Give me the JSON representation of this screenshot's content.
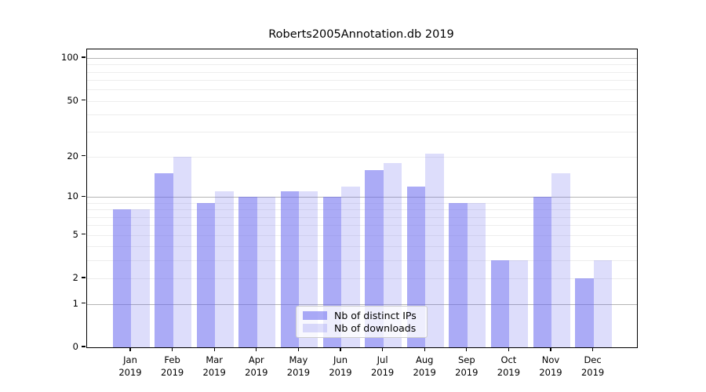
{
  "chart_data": {
    "type": "bar",
    "title": "Roberts2005Annotation.db 2019",
    "year_label": "2019",
    "categories": [
      "Jan",
      "Feb",
      "Mar",
      "Apr",
      "May",
      "Jun",
      "Jul",
      "Aug",
      "Sep",
      "Oct",
      "Nov",
      "Dec"
    ],
    "series": [
      {
        "name": "Nb of distinct IPs",
        "color": "rgba(102,102,238,0.55)",
        "values": [
          8,
          15,
          9,
          10,
          11,
          10,
          16,
          12,
          9,
          3,
          10,
          2
        ]
      },
      {
        "name": "Nb of downloads",
        "color": "rgba(102,102,238,0.22)",
        "values": [
          8,
          20,
          11,
          10,
          11,
          12,
          18,
          21,
          9,
          3,
          15,
          3
        ]
      }
    ],
    "y_axis": {
      "scale": "symlog-ln(1+v)",
      "min": 0,
      "max": 115,
      "ticks": [
        100,
        50,
        20,
        10,
        5,
        2,
        1,
        0
      ],
      "major_gridlines": [
        1,
        10,
        100
      ],
      "minor_gridlines": [
        2,
        3,
        4,
        5,
        6,
        7,
        8,
        9,
        20,
        30,
        40,
        50,
        60,
        70,
        80,
        90
      ]
    },
    "xlabel": "",
    "ylabel": "",
    "grid": true,
    "legend_position": "lower center"
  },
  "colors": {
    "bar_base": "#6666ee",
    "major_grid": "#b4b4b4",
    "minor_grid": "#ededed",
    "axis": "#000000",
    "legend_border": "#cccccc",
    "background": "#ffffff"
  }
}
